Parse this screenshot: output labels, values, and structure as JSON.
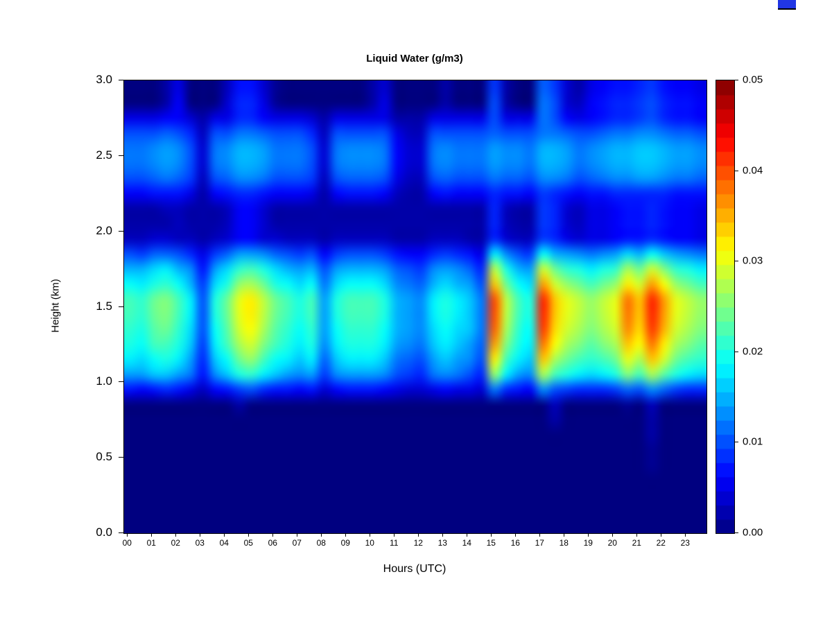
{
  "chart": {
    "title": "Liquid Water (g/m3)",
    "xlabel": "Hours (UTC)",
    "ylabel": "Height (km)",
    "y_ticks": [
      "3.0",
      "2.5",
      "2.0",
      "1.5",
      "1.0",
      "0.5",
      "0.0"
    ],
    "x_ticks": [
      "00",
      "01",
      "02",
      "03",
      "04",
      "05",
      "06",
      "07",
      "08",
      "09",
      "10",
      "11",
      "12",
      "13",
      "14",
      "15",
      "16",
      "17",
      "18",
      "19",
      "20",
      "21",
      "22",
      "23"
    ],
    "colorbar_ticks": [
      "0.00",
      "0.01",
      "0.02",
      "0.03",
      "0.04",
      "0.05"
    ],
    "background_color": "#ffffff",
    "artifact_color": "#2136e4"
  },
  "chart_data": {
    "type": "heatmap",
    "title": "Liquid Water (g/m3)",
    "xlabel": "Hours (UTC)",
    "ylabel": "Height (km)",
    "units": "g/m3",
    "palette": "jet",
    "xlim": [
      0,
      24
    ],
    "ylim": [
      0,
      3
    ],
    "vmin": 0,
    "vmax": 0.05,
    "value_scale": 0.001,
    "colorbar": {
      "n_segments": 32,
      "vmin": 0,
      "vmax": 0.05
    },
    "x_hours": [
      0.25,
      0.75,
      1.25,
      1.75,
      2.25,
      2.75,
      3.25,
      3.75,
      4.25,
      4.75,
      5.25,
      5.75,
      6.25,
      6.75,
      7.25,
      7.75,
      8.25,
      8.75,
      9.25,
      9.75,
      10.25,
      10.75,
      11.25,
      11.75,
      12.25,
      12.75,
      13.25,
      13.75,
      14.25,
      14.75,
      15.25,
      15.75,
      16.25,
      16.75,
      17.25,
      17.75,
      18.25,
      18.75,
      19.25,
      19.75,
      20.25,
      20.75,
      21.25,
      21.75,
      22.25,
      22.75,
      23.25,
      23.75
    ],
    "heights_km": [
      0.05,
      0.15,
      0.25,
      0.35,
      0.45,
      0.55,
      0.65,
      0.75,
      0.85,
      0.95,
      1.05,
      1.15,
      1.25,
      1.35,
      1.45,
      1.55,
      1.65,
      1.75,
      1.85,
      1.95,
      2.05,
      2.15,
      2.25,
      2.35,
      2.45,
      2.55,
      2.65,
      2.75,
      2.85,
      2.95
    ],
    "values_note": "rows ordered bottom height to top height; values are liquid water in units of 0.001 g/m3",
    "values": [
      [
        0,
        0,
        0,
        0,
        0,
        0,
        0,
        0,
        0,
        0,
        0,
        0,
        0,
        0,
        0,
        0,
        0,
        0,
        0,
        0,
        0,
        0,
        0,
        0,
        0,
        0,
        0,
        0,
        0,
        0,
        0,
        0,
        0,
        0,
        0,
        0,
        0,
        0,
        0,
        0,
        0,
        0,
        0,
        0,
        0,
        0,
        0,
        0
      ],
      [
        0,
        0,
        0,
        0,
        0,
        0,
        0,
        0,
        0,
        0,
        0,
        0,
        0,
        0,
        0,
        0,
        0,
        0,
        0,
        0,
        0,
        0,
        0,
        0,
        0,
        0,
        0,
        0,
        0,
        0,
        0,
        0,
        0,
        0,
        0,
        0,
        0,
        0,
        0,
        0,
        0,
        0,
        0,
        0,
        0,
        0,
        0,
        0
      ],
      [
        0,
        0,
        0,
        0,
        0,
        0,
        0,
        0,
        0,
        0,
        0,
        0,
        0,
        0,
        0,
        0,
        0,
        0,
        0,
        0,
        0,
        0,
        0,
        0,
        0,
        0,
        0,
        0,
        0,
        0,
        0,
        0,
        0,
        0,
        0,
        0,
        0,
        0,
        0,
        0,
        0,
        0,
        0,
        0,
        0,
        0,
        0,
        0
      ],
      [
        0,
        0,
        0,
        0,
        0,
        0,
        0,
        0,
        0,
        0,
        0,
        0,
        0,
        0,
        0,
        0,
        0,
        0,
        0,
        0,
        0,
        0,
        0,
        0,
        0,
        0,
        0,
        0,
        0,
        0,
        0,
        0,
        0,
        0,
        0,
        0,
        0,
        0,
        0,
        0,
        0,
        0,
        0,
        0,
        0,
        0,
        0,
        0
      ],
      [
        0,
        0,
        0,
        0,
        0,
        0,
        0,
        0,
        0,
        0,
        0,
        0,
        0,
        0,
        0,
        0,
        0,
        0,
        0,
        0,
        0,
        0,
        0,
        0,
        0,
        0,
        0,
        0,
        0,
        0,
        0,
        0,
        0,
        0,
        0,
        0,
        0,
        0,
        0,
        0,
        0,
        0,
        0,
        1,
        0,
        0,
        0,
        0
      ],
      [
        0,
        0,
        0,
        0,
        0,
        0,
        0,
        0,
        0,
        0,
        0,
        0,
        0,
        0,
        0,
        0,
        0,
        0,
        0,
        0,
        0,
        0,
        0,
        0,
        0,
        0,
        0,
        0,
        0,
        0,
        0,
        0,
        0,
        0,
        0,
        0,
        0,
        0,
        0,
        0,
        0,
        0,
        0,
        1,
        0,
        0,
        0,
        0
      ],
      [
        0,
        0,
        0,
        0,
        0,
        0,
        0,
        0,
        0,
        0,
        0,
        0,
        0,
        0,
        0,
        0,
        0,
        0,
        0,
        0,
        0,
        0,
        0,
        0,
        0,
        0,
        0,
        0,
        0,
        0,
        0,
        0,
        0,
        0,
        0,
        0,
        0,
        0,
        0,
        0,
        0,
        0,
        0,
        2,
        0,
        0,
        0,
        0
      ],
      [
        0,
        0,
        0,
        0,
        0,
        0,
        0,
        0,
        0,
        0,
        0,
        0,
        0,
        0,
        0,
        0,
        0,
        0,
        0,
        0,
        0,
        0,
        0,
        0,
        0,
        0,
        0,
        0,
        0,
        0,
        0,
        0,
        0,
        0,
        0,
        2,
        0,
        0,
        0,
        0,
        0,
        0,
        0,
        2,
        0,
        0,
        0,
        0
      ],
      [
        0,
        0,
        0,
        0,
        0,
        0,
        0,
        0,
        0,
        2,
        0,
        0,
        0,
        0,
        0,
        0,
        0,
        0,
        0,
        0,
        0,
        0,
        0,
        0,
        0,
        0,
        0,
        0,
        0,
        0,
        0,
        0,
        0,
        0,
        0,
        3,
        0,
        0,
        0,
        0,
        0,
        1,
        0,
        3,
        0,
        0,
        0,
        0
      ],
      [
        7,
        6,
        7,
        8,
        7,
        5,
        3,
        6,
        7,
        9,
        10,
        8,
        7,
        7,
        6,
        7,
        4,
        6,
        7,
        7,
        7,
        6,
        5,
        4,
        4,
        5,
        6,
        5,
        5,
        4,
        12,
        8,
        7,
        6,
        13,
        10,
        9,
        8,
        8,
        8,
        9,
        11,
        10,
        13,
        11,
        9,
        8,
        8
      ],
      [
        14,
        14,
        16,
        16,
        14,
        12,
        7,
        13,
        16,
        20,
        21,
        18,
        16,
        14,
        13,
        14,
        9,
        13,
        14,
        14,
        14,
        13,
        10,
        9,
        8,
        12,
        13,
        12,
        10,
        8,
        26,
        18,
        14,
        13,
        27,
        22,
        20,
        18,
        17,
        18,
        20,
        25,
        22,
        27,
        23,
        20,
        18,
        17
      ],
      [
        18,
        17,
        19,
        20,
        18,
        14,
        8,
        16,
        19,
        24,
        26,
        22,
        19,
        18,
        16,
        18,
        11,
        16,
        18,
        18,
        18,
        16,
        12,
        11,
        10,
        14,
        16,
        14,
        13,
        10,
        32,
        22,
        18,
        16,
        34,
        27,
        24,
        22,
        21,
        22,
        24,
        30,
        27,
        34,
        29,
        24,
        22,
        21
      ],
      [
        20,
        19,
        22,
        22,
        20,
        16,
        9,
        18,
        22,
        27,
        29,
        25,
        22,
        20,
        18,
        20,
        13,
        18,
        20,
        20,
        20,
        18,
        14,
        13,
        12,
        16,
        18,
        16,
        14,
        11,
        36,
        25,
        20,
        18,
        38,
        31,
        27,
        25,
        23,
        25,
        27,
        34,
        31,
        38,
        32,
        27,
        25,
        23
      ],
      [
        21,
        20,
        23,
        24,
        21,
        17,
        10,
        19,
        23,
        29,
        31,
        27,
        23,
        21,
        19,
        21,
        14,
        19,
        21,
        21,
        21,
        19,
        15,
        14,
        13,
        17,
        19,
        17,
        16,
        12,
        39,
        27,
        21,
        19,
        41,
        33,
        29,
        27,
        25,
        27,
        29,
        37,
        33,
        41,
        35,
        29,
        27,
        25
      ],
      [
        22,
        21,
        24,
        25,
        22,
        18,
        10,
        20,
        24,
        30,
        32,
        28,
        24,
        22,
        20,
        22,
        14,
        20,
        22,
        22,
        22,
        20,
        15,
        14,
        13,
        18,
        20,
        18,
        16,
        12,
        40,
        28,
        22,
        20,
        42,
        34,
        30,
        28,
        26,
        28,
        30,
        38,
        34,
        42,
        36,
        30,
        28,
        26
      ],
      [
        22,
        21,
        24,
        25,
        22,
        18,
        10,
        20,
        24,
        30,
        32,
        28,
        24,
        22,
        20,
        22,
        14,
        20,
        22,
        22,
        22,
        20,
        15,
        14,
        13,
        18,
        20,
        18,
        16,
        12,
        40,
        28,
        22,
        20,
        42,
        34,
        30,
        28,
        26,
        28,
        30,
        38,
        34,
        42,
        36,
        30,
        28,
        26
      ],
      [
        19,
        18,
        20,
        21,
        19,
        15,
        9,
        17,
        20,
        26,
        27,
        24,
        20,
        19,
        17,
        19,
        12,
        17,
        19,
        19,
        19,
        17,
        13,
        12,
        11,
        15,
        17,
        15,
        14,
        10,
        34,
        24,
        19,
        17,
        36,
        29,
        26,
        24,
        22,
        24,
        26,
        32,
        29,
        36,
        31,
        26,
        24,
        22
      ],
      [
        15,
        15,
        17,
        18,
        15,
        13,
        7,
        14,
        17,
        21,
        22,
        20,
        17,
        15,
        14,
        15,
        10,
        14,
        15,
        15,
        15,
        14,
        11,
        10,
        9,
        13,
        14,
        13,
        11,
        8,
        28,
        20,
        15,
        14,
        29,
        24,
        21,
        20,
        18,
        20,
        21,
        27,
        24,
        29,
        25,
        21,
        20,
        18
      ],
      [
        10,
        9,
        11,
        11,
        10,
        8,
        5,
        9,
        11,
        14,
        14,
        13,
        11,
        10,
        9,
        10,
        6,
        9,
        10,
        10,
        10,
        9,
        7,
        6,
        6,
        8,
        9,
        8,
        7,
        5,
        18,
        13,
        10,
        9,
        19,
        15,
        14,
        13,
        12,
        13,
        14,
        17,
        15,
        19,
        16,
        14,
        13,
        12
      ],
      [
        3,
        3,
        4,
        4,
        3,
        3,
        2,
        3,
        4,
        6,
        6,
        4,
        4,
        3,
        3,
        3,
        2,
        3,
        3,
        3,
        3,
        3,
        2,
        2,
        2,
        3,
        3,
        3,
        2,
        2,
        8,
        4,
        3,
        3,
        9,
        8,
        5,
        4,
        5,
        5,
        6,
        7,
        7,
        8,
        7,
        6,
        6,
        5
      ],
      [
        2,
        2,
        2,
        2,
        3,
        2,
        2,
        2,
        3,
        6,
        6,
        4,
        2,
        2,
        2,
        2,
        2,
        2,
        2,
        2,
        2,
        2,
        2,
        2,
        2,
        2,
        2,
        2,
        2,
        2,
        8,
        3,
        2,
        2,
        9,
        8,
        4,
        3,
        5,
        5,
        6,
        7,
        7,
        8,
        7,
        6,
        6,
        5
      ],
      [
        2,
        2,
        2,
        3,
        3,
        2,
        2,
        2,
        3,
        6,
        6,
        4,
        2,
        2,
        2,
        2,
        2,
        2,
        2,
        2,
        2,
        2,
        2,
        2,
        2,
        2,
        2,
        2,
        2,
        2,
        8,
        3,
        2,
        2,
        9,
        8,
        4,
        3,
        5,
        5,
        6,
        7,
        7,
        8,
        7,
        6,
        6,
        5
      ],
      [
        6,
        6,
        7,
        7,
        7,
        5,
        2,
        6,
        7,
        8,
        8,
        7,
        6,
        6,
        6,
        5,
        2,
        6,
        7,
        7,
        7,
        6,
        3,
        2,
        2,
        6,
        7,
        6,
        6,
        6,
        8,
        7,
        7,
        6,
        9,
        8,
        7,
        6,
        7,
        7,
        8,
        8,
        8,
        8,
        8,
        7,
        7,
        7
      ],
      [
        10,
        10,
        11,
        12,
        11,
        9,
        3,
        10,
        11,
        13,
        13,
        12,
        10,
        10,
        10,
        9,
        3,
        10,
        11,
        11,
        11,
        10,
        5,
        3,
        3,
        10,
        11,
        10,
        10,
        10,
        12,
        11,
        11,
        10,
        13,
        13,
        12,
        10,
        11,
        12,
        13,
        13,
        14,
        14,
        13,
        12,
        12,
        11
      ],
      [
        12,
        12,
        13,
        14,
        13,
        10,
        4,
        12,
        13,
        15,
        15,
        14,
        12,
        12,
        12,
        10,
        4,
        12,
        13,
        13,
        13,
        12,
        6,
        4,
        4,
        12,
        13,
        12,
        12,
        12,
        14,
        13,
        13,
        12,
        15,
        15,
        14,
        12,
        13,
        14,
        15,
        15,
        16,
        16,
        15,
        14,
        14,
        13
      ],
      [
        12,
        12,
        13,
        14,
        13,
        10,
        4,
        12,
        13,
        15,
        15,
        14,
        12,
        12,
        12,
        10,
        4,
        12,
        13,
        13,
        13,
        12,
        6,
        4,
        4,
        12,
        13,
        12,
        12,
        12,
        14,
        13,
        13,
        12,
        15,
        15,
        14,
        12,
        13,
        14,
        15,
        15,
        16,
        16,
        15,
        14,
        14,
        13
      ],
      [
        10,
        10,
        10,
        11,
        10,
        8,
        3,
        10,
        10,
        12,
        12,
        11,
        10,
        10,
        10,
        8,
        3,
        10,
        10,
        10,
        10,
        10,
        5,
        3,
        3,
        10,
        10,
        10,
        10,
        10,
        11,
        10,
        10,
        10,
        12,
        12,
        11,
        10,
        10,
        11,
        12,
        12,
        13,
        13,
        12,
        11,
        11,
        10
      ],
      [
        5,
        5,
        5,
        6,
        6,
        4,
        2,
        5,
        5,
        8,
        8,
        6,
        5,
        5,
        5,
        4,
        2,
        5,
        5,
        5,
        5,
        5,
        2,
        2,
        2,
        5,
        5,
        5,
        5,
        5,
        10,
        5,
        5,
        5,
        12,
        10,
        6,
        5,
        6,
        7,
        8,
        8,
        9,
        10,
        8,
        7,
        7,
        6
      ],
      [
        0,
        0,
        0,
        2,
        6,
        0,
        0,
        0,
        4,
        8,
        8,
        5,
        1,
        0,
        0,
        0,
        0,
        0,
        0,
        0,
        2,
        5,
        0,
        0,
        0,
        0,
        2,
        0,
        0,
        0,
        10,
        2,
        0,
        0,
        12,
        10,
        4,
        3,
        6,
        7,
        8,
        8,
        9,
        10,
        8,
        7,
        7,
        6
      ],
      [
        0,
        0,
        0,
        2,
        5,
        0,
        0,
        0,
        3,
        7,
        7,
        4,
        1,
        0,
        0,
        0,
        0,
        0,
        0,
        0,
        2,
        4,
        0,
        0,
        0,
        0,
        2,
        0,
        0,
        0,
        9,
        2,
        0,
        0,
        11,
        9,
        4,
        2,
        5,
        6,
        7,
        7,
        8,
        9,
        7,
        6,
        6,
        5
      ]
    ]
  }
}
